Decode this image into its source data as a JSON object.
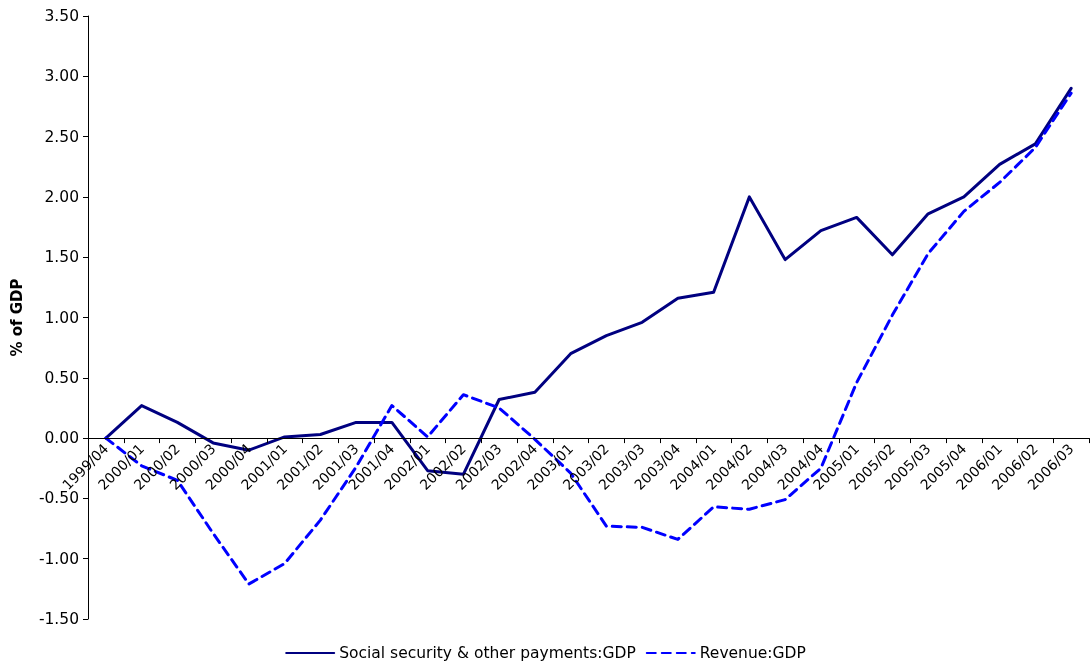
{
  "chart_data": {
    "type": "line",
    "ylabel": "% of GDP",
    "categories": [
      "1999/04",
      "2000/01",
      "2000/02",
      "2000/03",
      "2000/04",
      "2001/01",
      "2001/02",
      "2001/03",
      "2001/04",
      "2002/01",
      "2002/02",
      "2002/03",
      "2002/04",
      "2003/01",
      "2003/02",
      "2003/03",
      "2003/04",
      "2004/01",
      "2004/02",
      "2004/03",
      "2004/04",
      "2005/01",
      "2005/02",
      "2005/03",
      "2005/04",
      "2006/01",
      "2006/02",
      "2006/03"
    ],
    "series": [
      {
        "name": "Social security & other payments:GDP",
        "color": "#000080",
        "line_style": "solid",
        "values": [
          0.0,
          0.27,
          0.13,
          -0.04,
          -0.1,
          0.01,
          0.03,
          0.13,
          0.13,
          -0.27,
          -0.3,
          0.32,
          0.38,
          0.7,
          0.85,
          0.96,
          1.16,
          1.21,
          2.0,
          1.48,
          1.72,
          1.83,
          1.52,
          1.86,
          2.0,
          2.27,
          2.44,
          2.9
        ]
      },
      {
        "name": "Revenue:GDP",
        "color": "#0000ff",
        "line_style": "dashed",
        "values": [
          0.0,
          -0.23,
          -0.35,
          -0.79,
          -1.21,
          -1.04,
          -0.68,
          -0.24,
          0.27,
          0.01,
          0.36,
          0.25,
          -0.01,
          -0.29,
          -0.73,
          -0.74,
          -0.84,
          -0.57,
          -0.59,
          -0.51,
          -0.25,
          0.46,
          1.02,
          1.53,
          1.88,
          2.12,
          2.41,
          2.86
        ]
      }
    ],
    "ylim": [
      -1.5,
      3.5
    ],
    "yticks": [
      {
        "value": -1.5,
        "label": "-1.50"
      },
      {
        "value": -1,
        "label": "-1.00"
      },
      {
        "value": -0.5,
        "label": "-0.50"
      },
      {
        "value": 0,
        "label": "0.00"
      },
      {
        "value": 0.5,
        "label": "0.50"
      },
      {
        "value": 1,
        "label": "1.00"
      },
      {
        "value": 1.5,
        "label": "1.50"
      },
      {
        "value": 2,
        "label": "2.00"
      },
      {
        "value": 2.5,
        "label": "2.50"
      },
      {
        "value": 3,
        "label": "3.00"
      },
      {
        "value": 3.5,
        "label": "3.50"
      }
    ],
    "grid": false,
    "legend": "bottom",
    "marker": "none"
  }
}
